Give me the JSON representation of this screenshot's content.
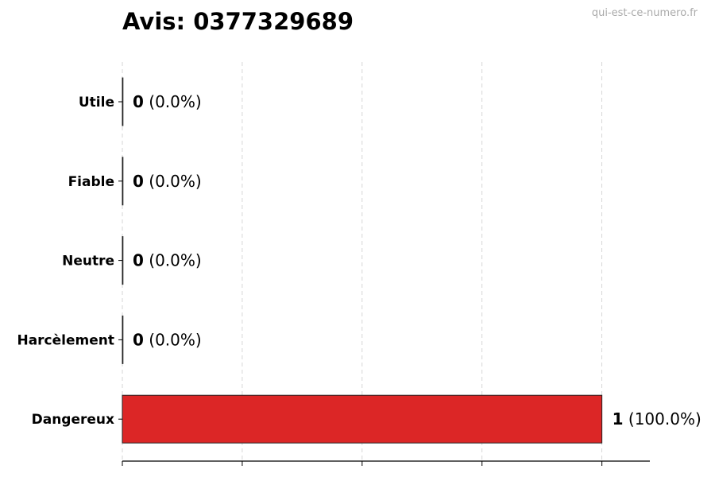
{
  "watermark": "qui-est-ce-numero.fr",
  "chart_data": {
    "type": "bar",
    "orientation": "horizontal",
    "title": "Avis: 0377329689",
    "xlabel": "",
    "ylabel": "",
    "categories": [
      "Utile",
      "Fiable",
      "Neutre",
      "Harcèlement",
      "Dangereux"
    ],
    "values": [
      0,
      0,
      0,
      0,
      1
    ],
    "data_labels": [
      {
        "count": "0",
        "pct": "(0.0%)"
      },
      {
        "count": "0",
        "pct": "(0.0%)"
      },
      {
        "count": "0",
        "pct": "(0.0%)"
      },
      {
        "count": "0",
        "pct": "(0.0%)"
      },
      {
        "count": "1",
        "pct": "(100.0%)"
      }
    ],
    "colors": [
      "#555555",
      "#555555",
      "#555555",
      "#555555",
      "#DC2626"
    ],
    "xlim": [
      0,
      1.1
    ],
    "x_gridlines": [
      0,
      0.25,
      0.5,
      0.75,
      1.0
    ],
    "grid": "x-dashed",
    "legend": "none"
  }
}
